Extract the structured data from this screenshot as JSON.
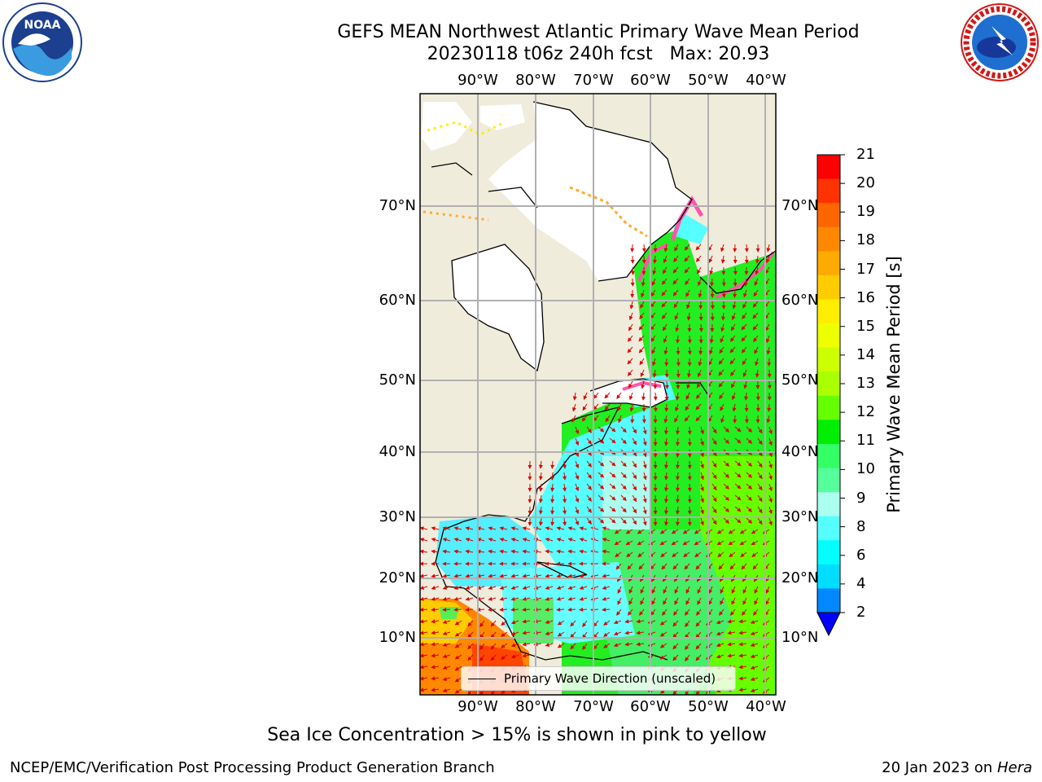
{
  "header": {
    "title_line1": "GEFS MEAN Northwest Atlantic Primary Wave Mean Period",
    "title_line2": "20230118 t06z 240h fcst   Max: 20.93"
  },
  "logos": {
    "left": "noaa-logo",
    "right": "nws-logo"
  },
  "map": {
    "lon_labels": [
      "90°W",
      "80°W",
      "70°W",
      "60°W",
      "50°W",
      "40°W"
    ],
    "lat_labels": [
      "70°N",
      "60°N",
      "50°N",
      "40°N",
      "30°N",
      "20°N",
      "10°N"
    ],
    "legend_text": "Primary Wave Direction (unscaled)",
    "land_color": "#efecdc",
    "ice_colors": [
      "#ff55aa",
      "#ffaa33",
      "#ffee00"
    ],
    "arrow_color": "#dd0000"
  },
  "colorbar": {
    "label": "Primary Wave Mean Period [s]",
    "ticks": [
      "21",
      "20",
      "19",
      "18",
      "17",
      "16",
      "15",
      "14",
      "13",
      "12",
      "11",
      "10",
      "9",
      "8",
      "6",
      "4",
      "2"
    ],
    "colors": [
      "#ff0000",
      "#ff3300",
      "#ff6600",
      "#ff8800",
      "#ffaa00",
      "#ffcc00",
      "#ffee00",
      "#eeff00",
      "#ccff00",
      "#aaff00",
      "#66ff00",
      "#00ee00",
      "#33ff66",
      "#55ff99",
      "#aaffee",
      "#55ffff",
      "#00ffff",
      "#00ddff",
      "#0088ff",
      "#0000ff"
    ]
  },
  "footer": {
    "subtitle": "Sea Ice Concentration > 15% is shown in pink to yellow",
    "left": "NCEP/EMC/Verification Post Processing Product Generation Branch",
    "right_date": "20 Jan 2023 on",
    "right_host": "Hera"
  }
}
